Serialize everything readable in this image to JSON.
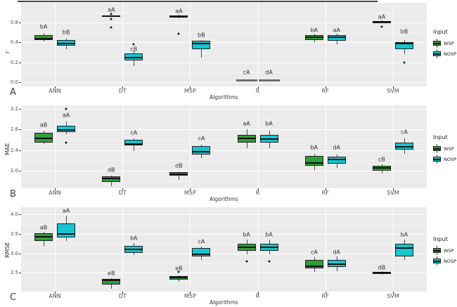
{
  "figure": {
    "panel_bg": "#ebebeb",
    "grid_major_color": "#ffffff",
    "grid_minor_color": "#f4f4f4",
    "box_colors": {
      "WSP": "#2f9e38",
      "NOSP": "#15c5cf"
    },
    "box_border_color": "#222222",
    "median_color": "#101010",
    "whisker_color": "#4a4a4a",
    "outlier_color": "#1a1a1a",
    "flat_box_color": "#6f6f6f",
    "x_axis_title": "Algorithms",
    "categories": [
      "ANN",
      "DT",
      "M5P",
      "R",
      "RF",
      "SVM"
    ],
    "legend": {
      "title": "Input",
      "items": [
        {
          "label": "WSP"
        },
        {
          "label": "NOSP"
        }
      ]
    }
  },
  "chart_data": [
    {
      "type": "boxplot",
      "panel_label": "A",
      "ylabel": "r",
      "xlabel": "Algorithms",
      "categories": [
        "ANN",
        "DT",
        "M5P",
        "R",
        "RF",
        "SVM"
      ],
      "series_names": [
        "WSP",
        "NOSP"
      ],
      "yticks": [
        {
          "v": 0.0,
          "label": "0.0"
        },
        {
          "v": 0.2,
          "label": "0.2"
        },
        {
          "v": 0.4,
          "label": "0.4"
        },
        {
          "v": 0.8,
          "label": "0.8"
        }
      ],
      "grid_minor": [
        0.1,
        0.3,
        0.6,
        1.0
      ],
      "scale_anchors": [
        [
          0.0,
          113
        ],
        [
          0.2,
          84.7
        ],
        [
          0.4,
          56.3
        ],
        [
          0.8,
          28
        ],
        [
          1.2,
          -0.3
        ]
      ],
      "groups": [
        {
          "category": "ANN",
          "boxes": [
            {
              "input": "WSP",
              "low": 0.42,
              "q1": 0.44,
              "median": 0.47,
              "q3": 0.55,
              "high": 0.59,
              "outliers": [],
              "sig_label": "bA",
              "label_y": 0.72
            },
            {
              "input": "NOSP",
              "low": 0.33,
              "q1": 0.37,
              "median": 0.39,
              "q3": 0.45,
              "high": 0.48,
              "outliers": [],
              "sig_label": "bB",
              "label_y": 0.6
            }
          ]
        },
        {
          "category": "DT",
          "boxes": [
            {
              "input": "WSP",
              "low": 0.92,
              "q1": 0.92,
              "median": 0.93,
              "q3": 0.94,
              "high": 0.94,
              "outliers": [
                0.97,
                0.87,
                0.7
              ],
              "sig_label": "aA",
              "label_y": 1.05
            },
            {
              "input": "NOSP",
              "low": 0.16,
              "q1": 0.22,
              "median": 0.25,
              "q3": 0.29,
              "high": 0.31,
              "outliers": [
                0.38
              ],
              "sig_label": "cB",
              "label_y": 0.33
            }
          ]
        },
        {
          "category": "M5P",
          "boxes": [
            {
              "input": "WSP",
              "low": 0.89,
              "q1": 0.9,
              "median": 0.92,
              "q3": 0.94,
              "high": 0.95,
              "outliers": [
                0.58
              ],
              "sig_label": "aA",
              "label_y": 1.03
            },
            {
              "input": "NOSP",
              "low": 0.25,
              "q1": 0.33,
              "median": 0.39,
              "q3": 0.43,
              "high": 0.44,
              "outliers": [],
              "sig_label": "bB",
              "label_y": 0.55
            }
          ]
        },
        {
          "category": "R",
          "boxes": [
            {
              "input": "WSP",
              "flat": true,
              "median": 0.02,
              "outliers": [],
              "sig_label": "cA",
              "label_y": 0.1
            },
            {
              "input": "NOSP",
              "flat": true,
              "median": 0.02,
              "outliers": [],
              "sig_label": "dA",
              "label_y": 0.1
            }
          ]
        },
        {
          "category": "RF",
          "boxes": [
            {
              "input": "WSP",
              "low": 0.41,
              "q1": 0.44,
              "median": 0.5,
              "q3": 0.54,
              "high": 0.57,
              "outliers": [],
              "sig_label": "bA",
              "label_y": 0.65
            },
            {
              "input": "NOSP",
              "low": 0.38,
              "q1": 0.43,
              "median": 0.51,
              "q3": 0.54,
              "high": 0.57,
              "outliers": [],
              "sig_label": "aA",
              "label_y": 0.65
            }
          ]
        },
        {
          "category": "SVM",
          "boxes": [
            {
              "input": "WSP",
              "low": 0.78,
              "q1": 0.79,
              "median": 0.81,
              "q3": 0.83,
              "high": 0.84,
              "outliers": [
                0.72
              ],
              "sig_label": "aA",
              "label_y": 0.92
            },
            {
              "input": "NOSP",
              "low": 0.28,
              "q1": 0.33,
              "median": 0.39,
              "q3": 0.41,
              "high": 0.44,
              "outliers": [
                0.2
              ],
              "sig_label": "bB",
              "label_y": 0.62
            }
          ]
        }
      ]
    },
    {
      "type": "boxplot",
      "panel_label": "B",
      "ylabel": "MAE",
      "xlabel": "Algorithms",
      "categories": [
        "ANN",
        "DT",
        "M5P",
        "R",
        "RF",
        "SVM"
      ],
      "series_names": [
        "WSP",
        "NOSP"
      ],
      "yticks": [
        {
          "v": 2.0,
          "label": "2.0"
        },
        {
          "v": 2.4,
          "label": "2.4"
        },
        {
          "v": 2.8,
          "label": "2.8"
        },
        {
          "v": 3.2,
          "label": "3.2"
        }
      ],
      "grid_minor": [
        1.8,
        2.2,
        2.6,
        3.0
      ],
      "scale_anchors": [
        [
          1.66,
          118
        ],
        [
          3.28,
          -1
        ]
      ],
      "groups": [
        {
          "category": "ANN",
          "boxes": [
            {
              "input": "WSP",
              "low": 2.52,
              "q1": 2.55,
              "median": 2.62,
              "q3": 2.73,
              "high": 2.78,
              "outliers": [],
              "sig_label": "aB",
              "label_y": 2.88
            },
            {
              "input": "NOSP",
              "low": 2.71,
              "q1": 2.75,
              "median": 2.79,
              "q3": 2.87,
              "high": 2.96,
              "outliers": [
                3.2,
                2.55
              ],
              "sig_label": "aA",
              "label_y": 3.07
            }
          ]
        },
        {
          "category": "DT",
          "boxes": [
            {
              "input": "WSP",
              "low": 1.7,
              "q1": 1.78,
              "median": 1.85,
              "q3": 1.89,
              "high": 1.91,
              "outliers": [],
              "sig_label": "dB",
              "label_y": 2.01
            },
            {
              "input": "NOSP",
              "low": 2.38,
              "q1": 2.49,
              "median": 2.52,
              "q3": 2.6,
              "high": 2.63,
              "outliers": [],
              "sig_label": "cA",
              "label_y": 2.74
            }
          ]
        },
        {
          "category": "M5P",
          "boxes": [
            {
              "input": "WSP",
              "low": 1.83,
              "q1": 1.9,
              "median": 1.93,
              "q3": 1.97,
              "high": 1.99,
              "outliers": [],
              "sig_label": "dB",
              "label_y": 2.09
            },
            {
              "input": "NOSP",
              "low": 2.25,
              "q1": 2.32,
              "median": 2.37,
              "q3": 2.48,
              "high": 2.5,
              "outliers": [],
              "sig_label": "cA",
              "label_y": 2.62
            }
          ]
        },
        {
          "category": "R",
          "boxes": [
            {
              "input": "WSP",
              "low": 2.43,
              "q1": 2.55,
              "median": 2.63,
              "q3": 2.69,
              "high": 2.8,
              "outliers": [],
              "sig_label": "aA",
              "label_y": 2.91
            },
            {
              "input": "NOSP",
              "low": 2.43,
              "q1": 2.55,
              "median": 2.61,
              "q3": 2.69,
              "high": 2.78,
              "outliers": [],
              "sig_label": "bA",
              "label_y": 2.91
            }
          ]
        },
        {
          "category": "RF",
          "boxes": [
            {
              "input": "WSP",
              "low": 2.02,
              "q1": 2.1,
              "median": 2.15,
              "q3": 2.28,
              "high": 2.33,
              "outliers": [],
              "sig_label": "bA",
              "label_y": 2.45
            },
            {
              "input": "NOSP",
              "low": 2.05,
              "q1": 2.14,
              "median": 2.22,
              "q3": 2.27,
              "high": 2.32,
              "outliers": [],
              "sig_label": "dA",
              "label_y": 2.45
            }
          ]
        },
        {
          "category": "SVM",
          "boxes": [
            {
              "input": "WSP",
              "low": 1.95,
              "q1": 2.0,
              "median": 2.05,
              "q3": 2.09,
              "high": 2.12,
              "outliers": [],
              "sig_label": "cB",
              "label_y": 2.22
            },
            {
              "input": "NOSP",
              "low": 2.33,
              "q1": 2.41,
              "median": 2.46,
              "q3": 2.55,
              "high": 2.62,
              "outliers": [],
              "sig_label": "cA",
              "label_y": 2.75
            }
          ]
        }
      ]
    },
    {
      "type": "boxplot",
      "panel_label": "C",
      "ylabel": "RMSE",
      "xlabel": "Algorithms",
      "categories": [
        "ANN",
        "DT",
        "M5P",
        "R",
        "RF",
        "SVM"
      ],
      "series_names": [
        "WSP",
        "NOSP"
      ],
      "yticks": [
        {
          "v": 2.5,
          "label": "2.5"
        },
        {
          "v": 3.0,
          "label": "3.0"
        },
        {
          "v": 3.5,
          "label": "3.5"
        },
        {
          "v": 4.0,
          "label": "4.0"
        }
      ],
      "grid_minor": [
        2.25,
        2.75,
        3.25,
        3.75
      ],
      "scale_anchors": [
        [
          2.02,
          120
        ],
        [
          4.18,
          0
        ]
      ],
      "groups": [
        {
          "category": "ANN",
          "boxes": [
            {
              "input": "WSP",
              "low": 3.19,
              "q1": 3.31,
              "median": 3.42,
              "q3": 3.51,
              "high": 3.55,
              "outliers": [],
              "sig_label": "aB",
              "label_y": 3.65
            },
            {
              "input": "NOSP",
              "low": 3.32,
              "q1": 3.41,
              "median": 3.5,
              "q3": 3.77,
              "high": 3.97,
              "outliers": [],
              "sig_label": "aA",
              "label_y": 4.09
            }
          ]
        },
        {
          "category": "DT",
          "boxes": [
            {
              "input": "WSP",
              "low": 2.1,
              "q1": 2.2,
              "median": 2.31,
              "q3": 2.35,
              "high": 2.37,
              "outliers": [],
              "sig_label": "eB",
              "label_y": 2.49
            },
            {
              "input": "NOSP",
              "low": 2.95,
              "q1": 3.01,
              "median": 3.1,
              "q3": 3.19,
              "high": 3.26,
              "outliers": [],
              "sig_label": "bA",
              "label_y": 3.39
            }
          ]
        },
        {
          "category": "M5P",
          "boxes": [
            {
              "input": "WSP",
              "low": 2.28,
              "q1": 2.32,
              "median": 2.38,
              "q3": 2.41,
              "high": 2.43,
              "outliers": [
                2.53
              ],
              "sig_label": "eB",
              "label_y": 2.62
            },
            {
              "input": "NOSP",
              "low": 2.83,
              "q1": 2.92,
              "median": 2.98,
              "q3": 3.13,
              "high": 3.17,
              "outliers": [],
              "sig_label": "cA",
              "label_y": 3.29
            }
          ]
        },
        {
          "category": "R",
          "boxes": [
            {
              "input": "WSP",
              "low": 2.97,
              "q1": 3.07,
              "median": 3.15,
              "q3": 3.25,
              "high": 3.35,
              "outliers": [
                2.8
              ],
              "sig_label": "bA",
              "label_y": 3.47
            },
            {
              "input": "NOSP",
              "low": 2.97,
              "q1": 3.07,
              "median": 3.16,
              "q3": 3.25,
              "high": 3.35,
              "outliers": [
                2.8
              ],
              "sig_label": "bA",
              "label_y": 3.47
            }
          ]
        },
        {
          "category": "RF",
          "boxes": [
            {
              "input": "WSP",
              "low": 2.52,
              "q1": 2.62,
              "median": 2.67,
              "q3": 2.83,
              "high": 2.9,
              "outliers": [],
              "sig_label": "cA",
              "label_y": 3.03
            },
            {
              "input": "NOSP",
              "low": 2.55,
              "q1": 2.65,
              "median": 2.72,
              "q3": 2.83,
              "high": 2.92,
              "outliers": [],
              "sig_label": "dA",
              "label_y": 3.03
            }
          ]
        },
        {
          "category": "SVM",
          "boxes": [
            {
              "input": "WSP",
              "low": 2.45,
              "q1": 2.47,
              "median": 2.5,
              "q3": 2.53,
              "high": 2.55,
              "outliers": [],
              "sig_label": "dB",
              "label_y": 2.64
            },
            {
              "input": "NOSP",
              "low": 2.83,
              "q1": 2.92,
              "median": 3.13,
              "q3": 3.25,
              "high": 3.35,
              "outliers": [],
              "sig_label": "bA",
              "label_y": 3.47
            }
          ]
        }
      ]
    }
  ]
}
